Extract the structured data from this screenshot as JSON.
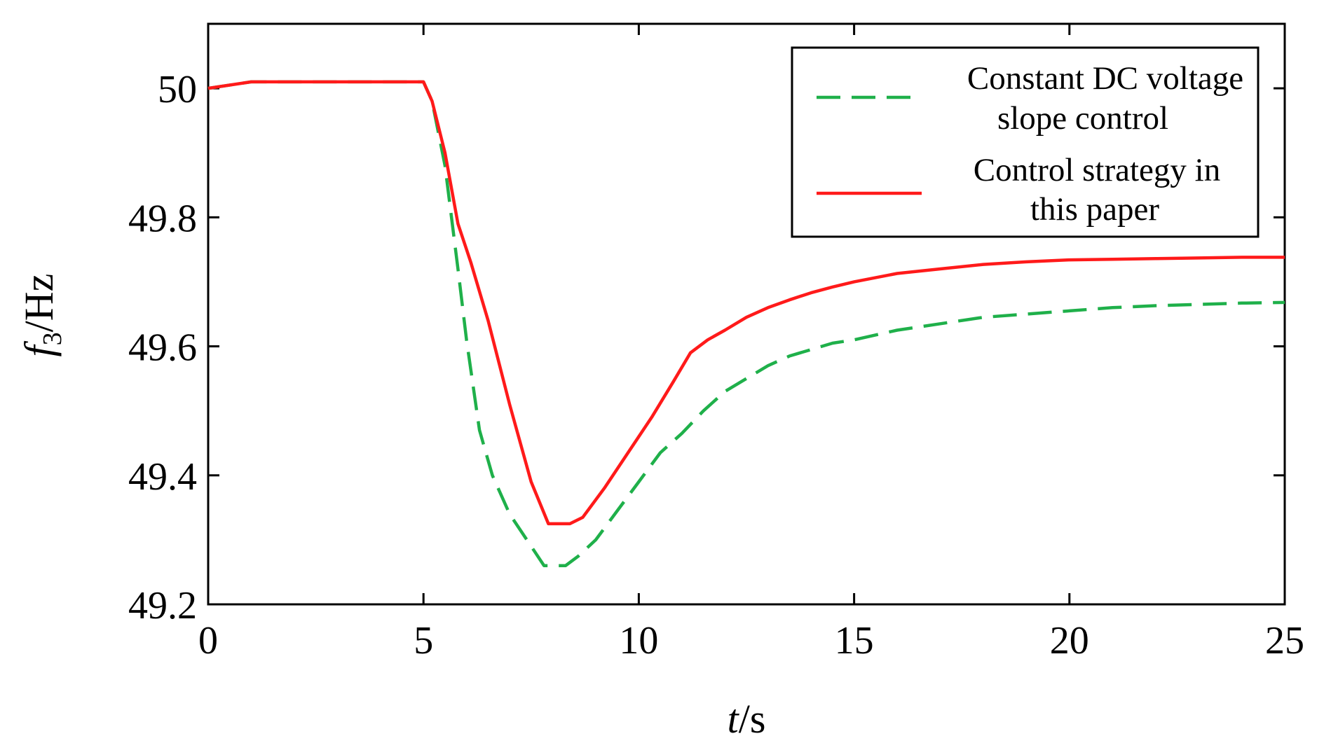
{
  "chart_data": {
    "type": "line",
    "title": "",
    "xlabel": {
      "italic": "t",
      "rest": "/s"
    },
    "ylabel": {
      "italic": "f",
      "subscript": "3",
      "rest": "/Hz"
    },
    "xlim": [
      0,
      25
    ],
    "ylim": [
      49.2,
      50.1
    ],
    "xticks": [
      0,
      5,
      10,
      15,
      20,
      25
    ],
    "xtick_labels": [
      "0",
      "5",
      "10",
      "15",
      "20",
      "25"
    ],
    "yticks": [
      49.2,
      49.4,
      49.6,
      49.8,
      50.0
    ],
    "ytick_labels": [
      "49.2",
      "49.4",
      "49.6",
      "49.8",
      "50"
    ],
    "grid": false,
    "legend_position": "top-right",
    "series": [
      {
        "name": "Constant DC voltage slope control",
        "label_lines": [
          "Constant DC voltage",
          "slope control"
        ],
        "color": "#1fb04a",
        "style": "dashed",
        "x": [
          0,
          1,
          2,
          3,
          4,
          5,
          5.2,
          5.5,
          5.8,
          6.0,
          6.3,
          6.6,
          7.0,
          7.4,
          7.8,
          8.3,
          8.6,
          9.0,
          9.5,
          10.0,
          10.5,
          11.0,
          11.5,
          12.0,
          12.5,
          13.0,
          13.5,
          14.0,
          14.5,
          15.0,
          16.0,
          17.0,
          18.0,
          19.0,
          20.0,
          21.0,
          22.0,
          23.0,
          24.0,
          25.0
        ],
        "y": [
          50.0,
          50.01,
          50.01,
          50.01,
          50.01,
          50.01,
          49.98,
          49.88,
          49.72,
          49.61,
          49.47,
          49.4,
          49.34,
          49.3,
          49.26,
          49.26,
          49.275,
          49.3,
          49.345,
          49.39,
          49.435,
          49.465,
          49.5,
          49.53,
          49.55,
          49.57,
          49.585,
          49.595,
          49.605,
          49.61,
          49.625,
          49.635,
          49.645,
          49.65,
          49.655,
          49.66,
          49.663,
          49.665,
          49.667,
          49.668
        ]
      },
      {
        "name": "Control strategy in this paper",
        "label_lines": [
          "Control strategy in",
          "this paper"
        ],
        "color": "#ff1a1a",
        "style": "solid",
        "x": [
          0,
          1,
          2,
          3,
          4,
          5,
          5.2,
          5.5,
          5.8,
          6.1,
          6.5,
          7.0,
          7.5,
          7.9,
          8.4,
          8.7,
          9.2,
          9.8,
          10.3,
          10.8,
          11.2,
          11.6,
          12.0,
          12.5,
          13.0,
          13.5,
          14.0,
          14.5,
          15.0,
          16.0,
          17.0,
          18.0,
          19.0,
          20.0,
          21.0,
          22.0,
          23.0,
          24.0,
          25.0
        ],
        "y": [
          50.0,
          50.01,
          50.01,
          50.01,
          50.01,
          50.01,
          49.98,
          49.9,
          49.79,
          49.73,
          49.64,
          49.51,
          49.39,
          49.325,
          49.325,
          49.335,
          49.38,
          49.44,
          49.49,
          49.545,
          49.59,
          49.61,
          49.625,
          49.645,
          49.66,
          49.672,
          49.683,
          49.692,
          49.7,
          49.713,
          49.72,
          49.727,
          49.731,
          49.734,
          49.735,
          49.736,
          49.737,
          49.738,
          49.738
        ]
      }
    ]
  }
}
